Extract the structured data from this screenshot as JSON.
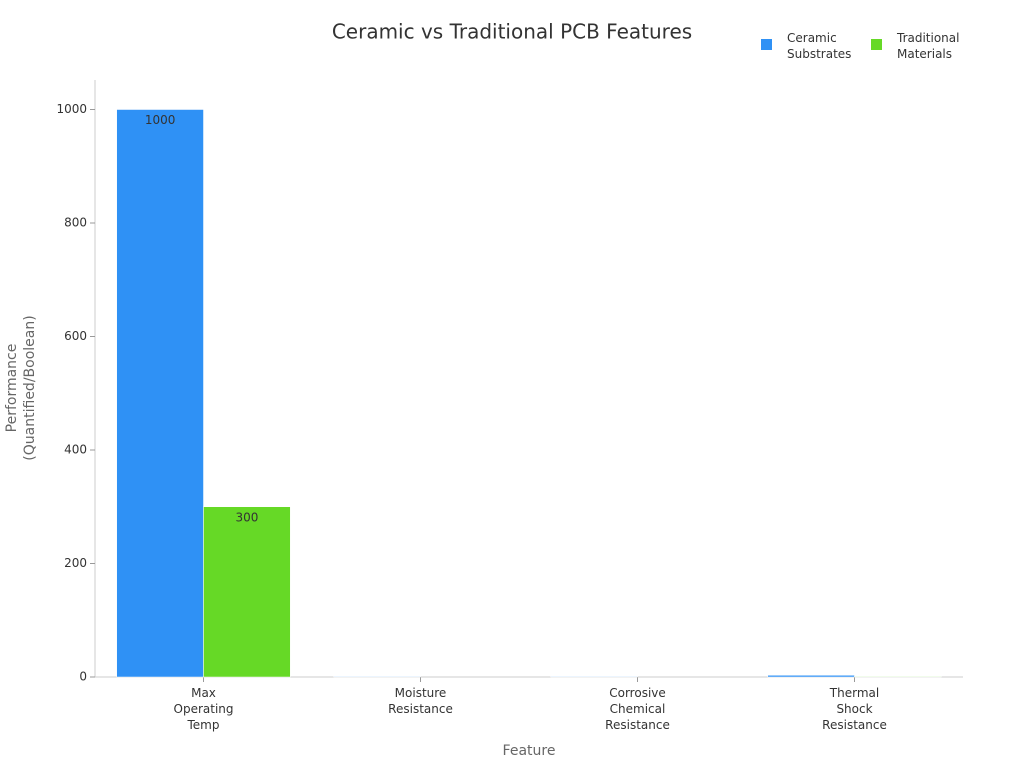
{
  "chart_data": {
    "type": "bar",
    "title": "Ceramic vs Traditional PCB Features",
    "x_label": "Feature",
    "y_label": "Performance (Quantified/Boolean)",
    "categories": [
      "Max Operating Temp",
      "Moisture Resistance",
      "Corrosive Chemical Resistance",
      "Thermal Shock Resistance"
    ],
    "series": [
      {
        "name": "Ceramic Substrates",
        "color": "#2f91f5",
        "values": [
          1000,
          1,
          1,
          3
        ]
      },
      {
        "name": "Traditional Materials",
        "color": "#66d926",
        "values": [
          300,
          0,
          0,
          1
        ]
      }
    ],
    "ylim": [
      0,
      1052
    ],
    "yticks": [
      0,
      200,
      400,
      600,
      800,
      1000
    ],
    "grid": false,
    "legend": "top-right"
  }
}
